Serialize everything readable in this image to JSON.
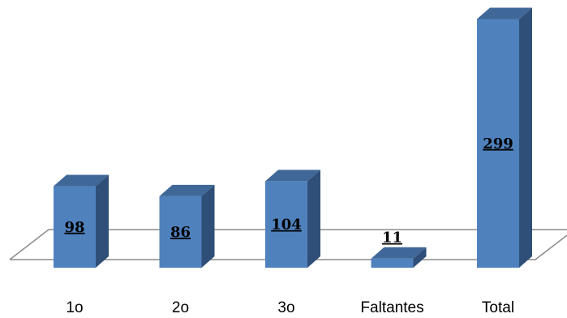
{
  "chart_data": {
    "type": "bar",
    "style": "3d-column",
    "categories": [
      "1o",
      "2o",
      "3o",
      "Faltantes",
      "Total"
    ],
    "values": [
      98,
      86,
      104,
      11,
      299
    ],
    "data_labels": [
      "98",
      "86",
      "104",
      "11",
      "299"
    ],
    "title": "",
    "xlabel": "",
    "ylabel": "",
    "ylim": [
      0,
      300
    ],
    "grid": false,
    "legend": "none",
    "colors": {
      "bar_front": "#4f81bd",
      "bar_side": "#2f4f78",
      "bar_top": "#3f6798",
      "floor_stroke": "#8c8c8c"
    }
  }
}
